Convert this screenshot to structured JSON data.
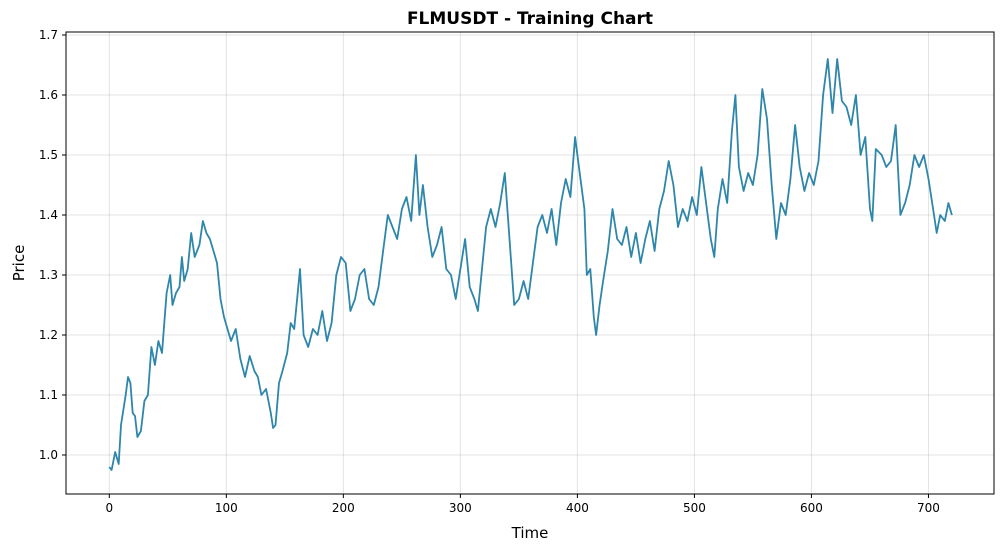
{
  "chart_data": {
    "type": "line",
    "title": "FLMUSDT - Training Chart",
    "xlabel": "Time",
    "ylabel": "Price",
    "xlim": [
      -37,
      756
    ],
    "ylim": [
      0.935,
      1.705
    ],
    "x_ticks": [
      0,
      100,
      200,
      300,
      400,
      500,
      600,
      700
    ],
    "y_ticks": [
      1.0,
      1.1,
      1.2,
      1.3,
      1.4,
      1.5,
      1.6,
      1.7
    ],
    "x_tick_labels": [
      "0",
      "100",
      "200",
      "300",
      "400",
      "500",
      "600",
      "700"
    ],
    "y_tick_labels": [
      "1.0",
      "1.1",
      "1.2",
      "1.3",
      "1.4",
      "1.5",
      "1.6",
      "1.7"
    ],
    "grid": true,
    "line_color": "#2e86ab",
    "anchors": [
      [
        0,
        0.98
      ],
      [
        2,
        0.975
      ],
      [
        5,
        1.005
      ],
      [
        8,
        0.985
      ],
      [
        10,
        1.05
      ],
      [
        14,
        1.1
      ],
      [
        16,
        1.13
      ],
      [
        18,
        1.12
      ],
      [
        20,
        1.07
      ],
      [
        22,
        1.065
      ],
      [
        24,
        1.03
      ],
      [
        27,
        1.04
      ],
      [
        30,
        1.09
      ],
      [
        33,
        1.1
      ],
      [
        36,
        1.18
      ],
      [
        39,
        1.15
      ],
      [
        42,
        1.19
      ],
      [
        45,
        1.17
      ],
      [
        47,
        1.22
      ],
      [
        49,
        1.27
      ],
      [
        52,
        1.3
      ],
      [
        54,
        1.25
      ],
      [
        57,
        1.27
      ],
      [
        60,
        1.28
      ],
      [
        62,
        1.33
      ],
      [
        64,
        1.29
      ],
      [
        67,
        1.31
      ],
      [
        70,
        1.37
      ],
      [
        73,
        1.33
      ],
      [
        77,
        1.35
      ],
      [
        80,
        1.39
      ],
      [
        83,
        1.37
      ],
      [
        86,
        1.36
      ],
      [
        89,
        1.34
      ],
      [
        92,
        1.32
      ],
      [
        95,
        1.26
      ],
      [
        98,
        1.23
      ],
      [
        101,
        1.21
      ],
      [
        104,
        1.19
      ],
      [
        108,
        1.21
      ],
      [
        112,
        1.16
      ],
      [
        116,
        1.13
      ],
      [
        120,
        1.165
      ],
      [
        124,
        1.14
      ],
      [
        127,
        1.13
      ],
      [
        130,
        1.1
      ],
      [
        134,
        1.11
      ],
      [
        138,
        1.07
      ],
      [
        140,
        1.045
      ],
      [
        142,
        1.05
      ],
      [
        145,
        1.12
      ],
      [
        148,
        1.14
      ],
      [
        152,
        1.17
      ],
      [
        155,
        1.22
      ],
      [
        158,
        1.21
      ],
      [
        161,
        1.27
      ],
      [
        163,
        1.31
      ],
      [
        166,
        1.2
      ],
      [
        170,
        1.18
      ],
      [
        174,
        1.21
      ],
      [
        178,
        1.2
      ],
      [
        182,
        1.24
      ],
      [
        186,
        1.19
      ],
      [
        190,
        1.22
      ],
      [
        194,
        1.3
      ],
      [
        198,
        1.33
      ],
      [
        202,
        1.32
      ],
      [
        206,
        1.24
      ],
      [
        210,
        1.26
      ],
      [
        214,
        1.3
      ],
      [
        218,
        1.31
      ],
      [
        222,
        1.26
      ],
      [
        226,
        1.25
      ],
      [
        230,
        1.28
      ],
      [
        234,
        1.34
      ],
      [
        238,
        1.4
      ],
      [
        242,
        1.38
      ],
      [
        246,
        1.36
      ],
      [
        250,
        1.41
      ],
      [
        254,
        1.43
      ],
      [
        258,
        1.39
      ],
      [
        262,
        1.5
      ],
      [
        265,
        1.4
      ],
      [
        268,
        1.45
      ],
      [
        272,
        1.38
      ],
      [
        276,
        1.33
      ],
      [
        280,
        1.35
      ],
      [
        284,
        1.38
      ],
      [
        288,
        1.31
      ],
      [
        292,
        1.3
      ],
      [
        296,
        1.26
      ],
      [
        300,
        1.31
      ],
      [
        304,
        1.36
      ],
      [
        308,
        1.28
      ],
      [
        312,
        1.26
      ],
      [
        315,
        1.24
      ],
      [
        318,
        1.3
      ],
      [
        322,
        1.38
      ],
      [
        326,
        1.41
      ],
      [
        330,
        1.38
      ],
      [
        334,
        1.42
      ],
      [
        338,
        1.47
      ],
      [
        342,
        1.36
      ],
      [
        346,
        1.25
      ],
      [
        350,
        1.26
      ],
      [
        354,
        1.29
      ],
      [
        358,
        1.26
      ],
      [
        362,
        1.32
      ],
      [
        366,
        1.38
      ],
      [
        370,
        1.4
      ],
      [
        374,
        1.37
      ],
      [
        378,
        1.41
      ],
      [
        382,
        1.35
      ],
      [
        386,
        1.42
      ],
      [
        390,
        1.46
      ],
      [
        394,
        1.43
      ],
      [
        398,
        1.53
      ],
      [
        402,
        1.47
      ],
      [
        406,
        1.41
      ],
      [
        408,
        1.3
      ],
      [
        411,
        1.31
      ],
      [
        414,
        1.23
      ],
      [
        416,
        1.2
      ],
      [
        419,
        1.25
      ],
      [
        422,
        1.29
      ],
      [
        426,
        1.34
      ],
      [
        430,
        1.41
      ],
      [
        434,
        1.36
      ],
      [
        438,
        1.35
      ],
      [
        442,
        1.38
      ],
      [
        446,
        1.33
      ],
      [
        450,
        1.37
      ],
      [
        454,
        1.32
      ],
      [
        458,
        1.36
      ],
      [
        462,
        1.39
      ],
      [
        466,
        1.34
      ],
      [
        470,
        1.41
      ],
      [
        474,
        1.44
      ],
      [
        478,
        1.49
      ],
      [
        482,
        1.45
      ],
      [
        486,
        1.38
      ],
      [
        490,
        1.41
      ],
      [
        494,
        1.39
      ],
      [
        498,
        1.43
      ],
      [
        502,
        1.4
      ],
      [
        506,
        1.48
      ],
      [
        510,
        1.42
      ],
      [
        514,
        1.36
      ],
      [
        517,
        1.33
      ],
      [
        520,
        1.41
      ],
      [
        524,
        1.46
      ],
      [
        528,
        1.42
      ],
      [
        532,
        1.54
      ],
      [
        535,
        1.6
      ],
      [
        538,
        1.48
      ],
      [
        542,
        1.44
      ],
      [
        546,
        1.47
      ],
      [
        550,
        1.45
      ],
      [
        554,
        1.5
      ],
      [
        558,
        1.61
      ],
      [
        562,
        1.56
      ],
      [
        566,
        1.45
      ],
      [
        570,
        1.36
      ],
      [
        574,
        1.42
      ],
      [
        578,
        1.4
      ],
      [
        582,
        1.46
      ],
      [
        586,
        1.55
      ],
      [
        590,
        1.48
      ],
      [
        594,
        1.44
      ],
      [
        598,
        1.47
      ],
      [
        602,
        1.45
      ],
      [
        606,
        1.49
      ],
      [
        610,
        1.6
      ],
      [
        614,
        1.66
      ],
      [
        618,
        1.57
      ],
      [
        622,
        1.66
      ],
      [
        626,
        1.59
      ],
      [
        630,
        1.58
      ],
      [
        634,
        1.55
      ],
      [
        638,
        1.6
      ],
      [
        642,
        1.5
      ],
      [
        646,
        1.53
      ],
      [
        650,
        1.41
      ],
      [
        652,
        1.39
      ],
      [
        655,
        1.51
      ],
      [
        660,
        1.5
      ],
      [
        664,
        1.48
      ],
      [
        668,
        1.49
      ],
      [
        672,
        1.55
      ],
      [
        676,
        1.4
      ],
      [
        680,
        1.42
      ],
      [
        684,
        1.45
      ],
      [
        688,
        1.5
      ],
      [
        692,
        1.48
      ],
      [
        696,
        1.5
      ],
      [
        700,
        1.46
      ],
      [
        704,
        1.41
      ],
      [
        707,
        1.37
      ],
      [
        710,
        1.4
      ],
      [
        714,
        1.39
      ],
      [
        717,
        1.42
      ],
      [
        720,
        1.4
      ]
    ]
  }
}
